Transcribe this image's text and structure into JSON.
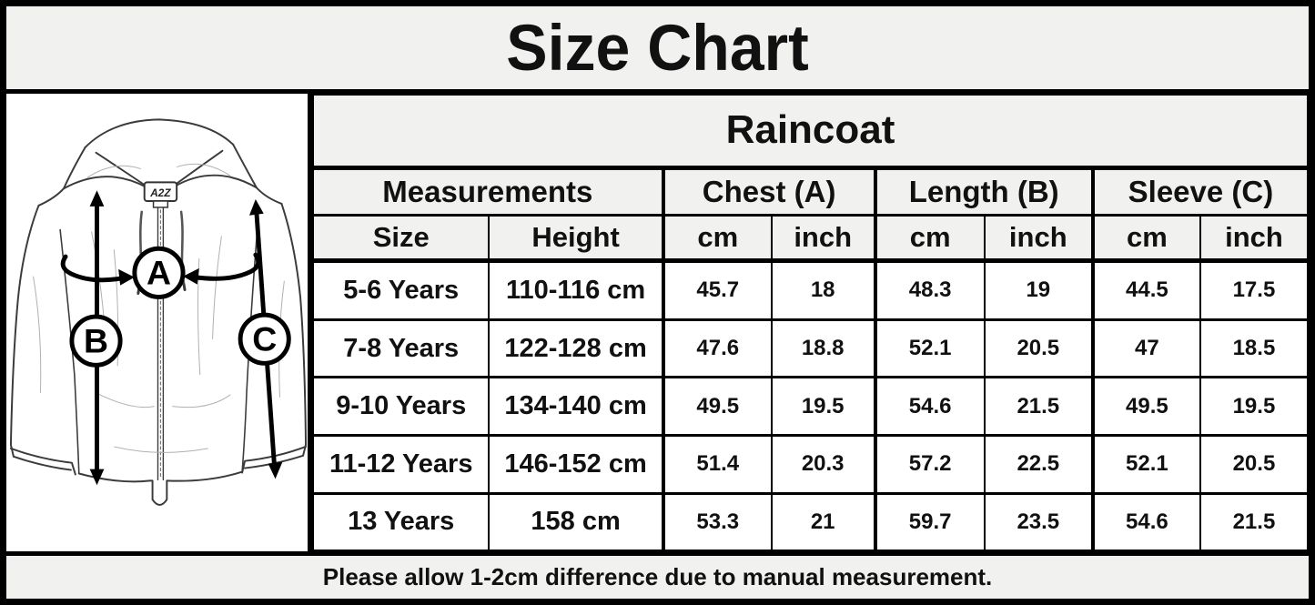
{
  "title": "Size Chart",
  "product": "Raincoat",
  "diagram": {
    "brand_label": "A2Z",
    "label_a": "A",
    "label_b": "B",
    "label_c": "C"
  },
  "table": {
    "group_headers": [
      {
        "label": "Measurements",
        "span": 2
      },
      {
        "label": "Chest (A)",
        "span": 2
      },
      {
        "label": "Length (B)",
        "span": 2
      },
      {
        "label": "Sleeve (C)",
        "span": 2
      }
    ],
    "sub_headers": [
      "Size",
      "Height",
      "cm",
      "inch",
      "cm",
      "inch",
      "cm",
      "inch"
    ],
    "rows": [
      [
        "5-6 Years",
        "110-116 cm",
        "45.7",
        "18",
        "48.3",
        "19",
        "44.5",
        "17.5"
      ],
      [
        "7-8 Years",
        "122-128 cm",
        "47.6",
        "18.8",
        "52.1",
        "20.5",
        "47",
        "18.5"
      ],
      [
        "9-10 Years",
        "134-140 cm",
        "49.5",
        "19.5",
        "54.6",
        "21.5",
        "49.5",
        "19.5"
      ],
      [
        "11-12 Years",
        "146-152 cm",
        "51.4",
        "20.3",
        "57.2",
        "22.5",
        "52.1",
        "20.5"
      ],
      [
        "13 Years",
        "158 cm",
        "53.3",
        "21",
        "59.7",
        "23.5",
        "54.6",
        "21.5"
      ]
    ]
  },
  "footer_note": "Please allow 1-2cm difference due to manual measurement.",
  "colors": {
    "page_background": "#f1f1ef",
    "cell_background": "#ffffff",
    "border": "#000000",
    "text": "#111111"
  }
}
